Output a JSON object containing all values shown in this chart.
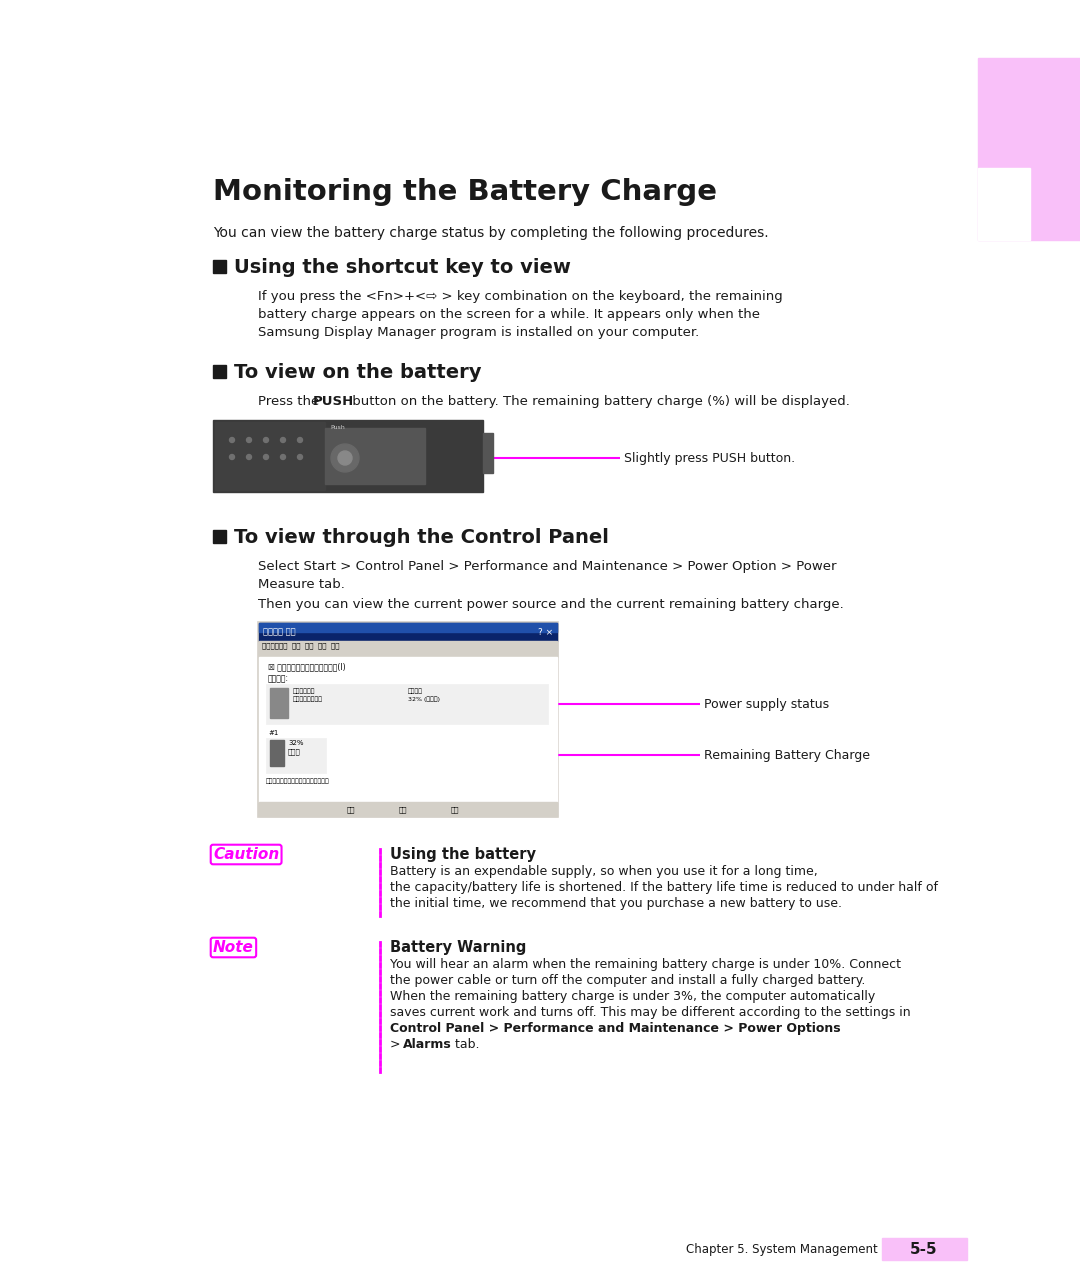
{
  "bg_color": "#ffffff",
  "pink_color": "#f9c0f9",
  "magenta_color": "#ff00ff",
  "dark_color": "#1a1a1a",
  "title": "Monitoring the Battery Charge",
  "intro": "You can view the battery charge status by completing the following procedures.",
  "section1_title": "Using the shortcut key to view",
  "section1_body_line1": "If you press the <Fn>+<⇨ > key combination on the keyboard, the remaining",
  "section1_body_line2": "battery charge appears on the screen for a while. It appears only when the",
  "section1_body_line3": "Samsung Display Manager program is installed on your computer.",
  "section2_title": "To view on the battery",
  "section2_body_pre": "Press the ",
  "section2_body_bold": "PUSH",
  "section2_body_post": " button on the battery. The remaining battery charge (%) will be displayed.",
  "battery_label": "Slightly press PUSH button.",
  "section3_title": "To view through the Control Panel",
  "section3_body1_line1": "Select Start > Control Panel > Performance and Maintenance > Power Option > Power",
  "section3_body1_line2": "Measure tab.",
  "section3_body2": "Then you can view the current power source and the current remaining battery charge.",
  "label_power": "Power supply status",
  "label_battery": "Remaining Battery Charge",
  "caution_title": "Using the battery",
  "caution_body_line1": "Battery is an expendable supply, so when you use it for a long time,",
  "caution_body_line2": "the capacity/battery life is shortened. If the battery life time is reduced to under half of",
  "caution_body_line3": "the initial time, we recommend that you purchase a new battery to use.",
  "note_title": "Battery Warning",
  "note_body_line1": "You will hear an alarm when the remaining battery charge is under 10%. Connect",
  "note_body_line2": "the power cable or turn off the computer and install a fully charged battery.",
  "note_body_line3": "When the remaining battery charge is under 3%, the computer automatically",
  "note_body_line4": "saves current work and turns off. This may be different according to the settings in",
  "note_body_bold": "Control Panel > Performance and Maintenance > Power Options",
  "note_body_last_pre": "> ",
  "note_body_last_bold": "Alarms",
  "note_body_last_post": " tab.",
  "footer": "Chapter 5. System Management",
  "footer_num": "5-5",
  "tab_pink": "#f9c0f9"
}
